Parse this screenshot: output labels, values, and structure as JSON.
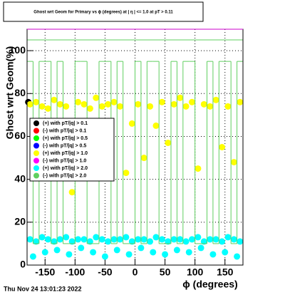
{
  "chart_data": {
    "type": "scatter",
    "title": "Ghost wrt Geom for Primary vs ϕ (degrees) at | η | <= 1.0 at pT > 0.11",
    "x_label": "ϕ (degrees)",
    "y_label": "Ghost wrt Geom(%)",
    "footer": "Thu Nov 24 13:01:23 2022",
    "xlim": [
      -180,
      180
    ],
    "ylim": [
      0,
      110
    ],
    "xticks": [
      -150,
      -100,
      -50,
      0,
      50,
      100,
      150
    ],
    "yticks": [
      0,
      20,
      40,
      60,
      80,
      100
    ],
    "grid": true,
    "hline": 105,
    "series": [
      {
        "name": "(+) with pT/|q| > 0.1",
        "color": "#000000",
        "x": [
          -178
        ],
        "values": [
          76
        ]
      },
      {
        "name": "(-) with pT/|q| > 0.1",
        "color": "#ff0000",
        "x": [],
        "values": []
      },
      {
        "name": "(+) with pT/|q| > 0.5",
        "color": "#00ff00",
        "x": [],
        "values": []
      },
      {
        "name": "(-) with pT/|q| > 0.5",
        "color": "#0000ff",
        "x": [],
        "values": []
      },
      {
        "name": "(+) with pT/|q| > 1.0",
        "color": "#ffff00",
        "x": [
          -175,
          -165,
          -155,
          -145,
          -135,
          -125,
          -115,
          -105,
          -95,
          -85,
          -75,
          -65,
          -55,
          -45,
          -35,
          -25,
          -15,
          -5,
          5,
          15,
          25,
          35,
          45,
          55,
          65,
          75,
          85,
          95,
          105,
          115,
          125,
          135,
          145,
          155,
          165,
          175
        ],
        "values": [
          75,
          76,
          74,
          73,
          77,
          75,
          74,
          34,
          76,
          75,
          73,
          78,
          74,
          75,
          76,
          74,
          43,
          66,
          75,
          50,
          74,
          65,
          76,
          57,
          75,
          78,
          74,
          76,
          45,
          75,
          74,
          77,
          55,
          74,
          48,
          76
        ]
      },
      {
        "name": "(-) with pT/|q| > 1.0",
        "color": "#ff00ff",
        "x": [],
        "values": []
      },
      {
        "name": "(+) with pT/|q| > 2.0",
        "color": "#00ffff",
        "x": [
          -175,
          -165,
          -155,
          -145,
          -135,
          -125,
          -115,
          -105,
          -95,
          -85,
          -75,
          -65,
          -55,
          -45,
          -35,
          -25,
          -15,
          -5,
          5,
          15,
          25,
          35,
          45,
          55,
          65,
          75,
          85,
          95,
          105,
          115,
          125,
          135,
          145,
          155,
          165,
          175,
          -170,
          -150,
          -130,
          -110,
          -90,
          -70,
          -50,
          -30,
          -10,
          10,
          30,
          50,
          70,
          90,
          110,
          130,
          150,
          170
        ],
        "values": [
          12,
          11,
          13,
          12,
          11,
          12,
          13,
          11,
          12,
          12,
          11,
          13,
          12,
          11,
          12,
          12,
          13,
          11,
          12,
          12,
          11,
          13,
          12,
          11,
          12,
          12,
          11,
          12,
          13,
          11,
          12,
          12,
          11,
          13,
          12,
          11,
          4,
          6,
          7,
          5,
          8,
          6,
          4,
          7,
          5,
          8,
          6,
          5,
          7,
          6,
          8,
          5,
          6,
          4
        ]
      },
      {
        "name": "(-) with pT/|q| > 2.0",
        "color": "#5fcf5f",
        "style": "step",
        "bins": [
          -180,
          -170,
          -160,
          -150,
          -140,
          -130,
          -120,
          -110,
          -100,
          -90,
          -80,
          -70,
          -60,
          -50,
          -40,
          -30,
          -20,
          -10,
          0,
          10,
          20,
          30,
          40,
          50,
          60,
          70,
          80,
          90,
          100,
          110,
          120,
          130,
          140,
          150,
          160,
          170,
          180
        ],
        "values": [
          95,
          10,
          95,
          95,
          10,
          95,
          10,
          10,
          95,
          95,
          10,
          10,
          95,
          95,
          10,
          95,
          10,
          10,
          95,
          10,
          95,
          95,
          10,
          10,
          95,
          10,
          95,
          95,
          10,
          10,
          95,
          10,
          95,
          95,
          10,
          95
        ]
      }
    ]
  }
}
